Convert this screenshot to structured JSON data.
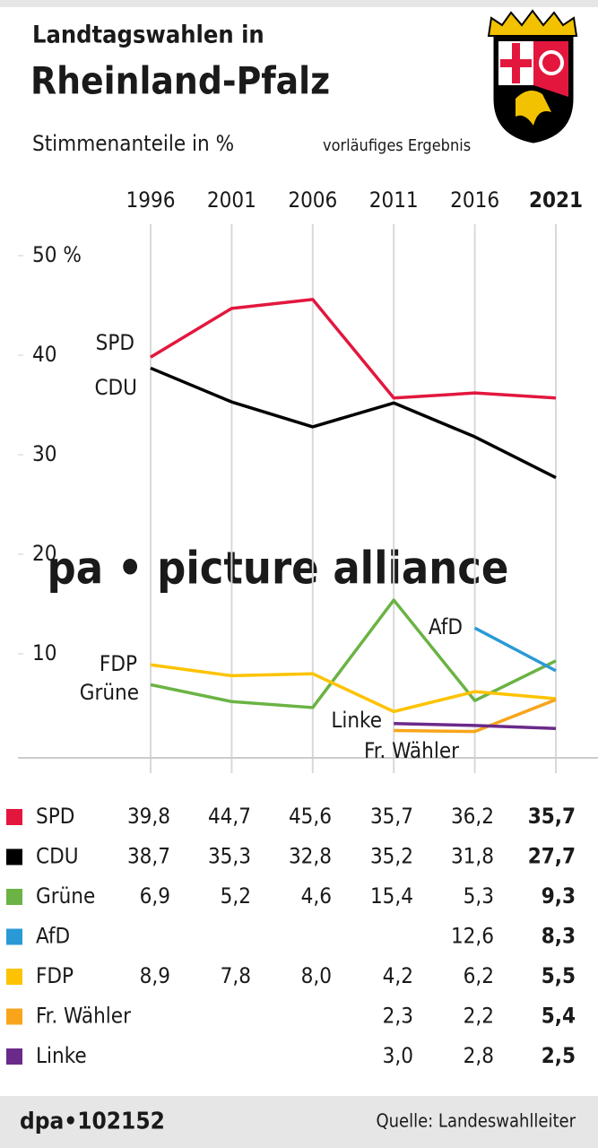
{
  "chart_data": {
    "type": "line",
    "title": "Landtagswahlen in",
    "subtitle": "Rheinland-Pfalz",
    "axis_label": "Stimmenanteile in %",
    "note": "vorläufiges Ergebnis",
    "watermark": "pa • picture alliance",
    "credit": "dpa•102152",
    "source": "Quelle: Landeswahlleiter",
    "categories": [
      "1996",
      "2001",
      "2006",
      "2011",
      "2016",
      "2021"
    ],
    "ylim": [
      0,
      50
    ],
    "yticks": [
      {
        "value": 50,
        "label": "50 %"
      },
      40,
      30,
      20,
      10
    ],
    "series": [
      {
        "name": "SPD",
        "color": "#e3173e",
        "values": [
          39.8,
          44.7,
          45.6,
          35.7,
          36.2,
          35.7
        ],
        "value_labels": [
          "39,8",
          "44,7",
          "45,6",
          "35,7",
          "36,2",
          "35,7"
        ]
      },
      {
        "name": "CDU",
        "color": "#000000",
        "values": [
          38.7,
          35.3,
          32.8,
          35.2,
          31.8,
          27.7
        ],
        "value_labels": [
          "38,7",
          "35,3",
          "32,8",
          "35,2",
          "31,8",
          "27,7"
        ]
      },
      {
        "name": "Grüne",
        "color": "#6ab344",
        "values": [
          6.9,
          5.2,
          4.6,
          15.4,
          5.3,
          9.3
        ],
        "value_labels": [
          "6,9",
          "5,2",
          "4,6",
          "15,4",
          "5,3",
          "9,3"
        ]
      },
      {
        "name": "AfD",
        "color": "#2a9ad6",
        "values": [
          null,
          null,
          null,
          null,
          12.6,
          8.3
        ],
        "value_labels": [
          null,
          null,
          null,
          null,
          "12,6",
          "8,3"
        ]
      },
      {
        "name": "FDP",
        "color": "#fdc300",
        "values": [
          8.9,
          7.8,
          8.0,
          4.2,
          6.2,
          5.5
        ],
        "value_labels": [
          "8,9",
          "7,8",
          "8,0",
          "4,2",
          "6,2",
          "5,5"
        ]
      },
      {
        "name": "Fr. Wähler",
        "color": "#f8a51b",
        "values": [
          null,
          null,
          null,
          2.3,
          2.2,
          5.4
        ],
        "value_labels": [
          null,
          null,
          null,
          "2,3",
          "2,2",
          "5,4"
        ]
      },
      {
        "name": "Linke",
        "color": "#6a2a8a",
        "values": [
          null,
          null,
          null,
          3.0,
          2.8,
          2.5
        ],
        "value_labels": [
          null,
          null,
          null,
          "3,0",
          "2,8",
          "2,5"
        ]
      }
    ]
  }
}
